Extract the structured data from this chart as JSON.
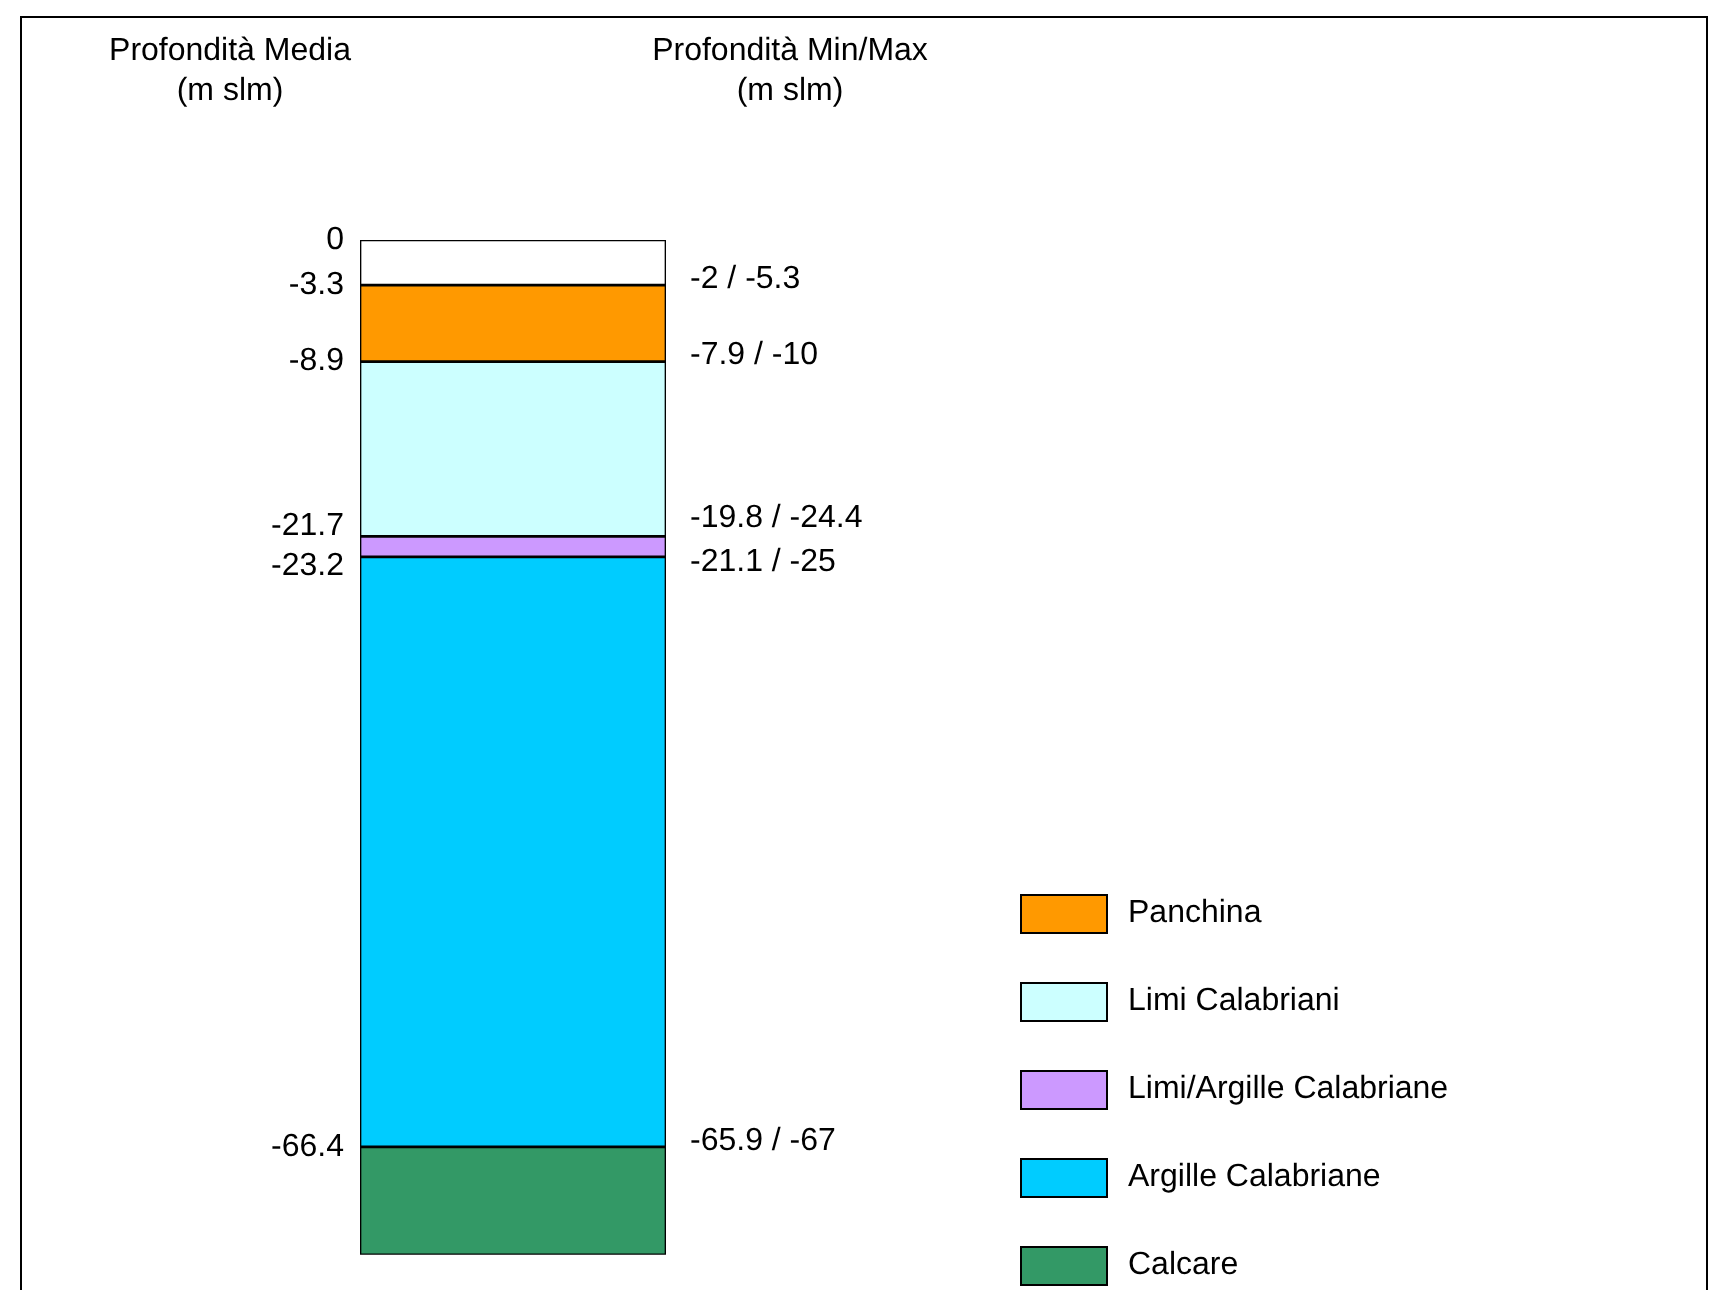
{
  "chart_data": {
    "type": "bar",
    "stacked": true,
    "categories": [
      null
    ],
    "ylabel": "Profondità Media (m slm)",
    "series": [
      {
        "color": "#ffffff",
        "values": [
          -3.3
        ]
      },
      {
        "name": "Panchina",
        "color": "#ff9900",
        "values": [
          -5.6
        ]
      },
      {
        "name": "Limi Calabriani",
        "color": "#ccffff",
        "values": [
          -12.8
        ]
      },
      {
        "name": "Limi/Argille Calabriane",
        "color": "#cc99ff",
        "values": [
          -1.5
        ]
      },
      {
        "name": "Argille Calabriane",
        "color": "#00ccff",
        "values": [
          -43.2
        ]
      },
      {
        "name": "Calcare",
        "color": "#339966",
        "values": [
          -7.9
        ]
      }
    ],
    "ylim": [
      -74.3,
      0
    ],
    "yticks": [
      0,
      -3.3,
      -8.9,
      -21.7,
      -23.2,
      -66.4
    ],
    "annotations": [
      "Profondità Min/Max (m slm)",
      "-2 / -5.3",
      "-7.9 / -10",
      "-19.8 / -24.4",
      "-21.1 / -25",
      "-65.9 / -67"
    ],
    "grid": false,
    "legend": "bottom right"
  }
}
